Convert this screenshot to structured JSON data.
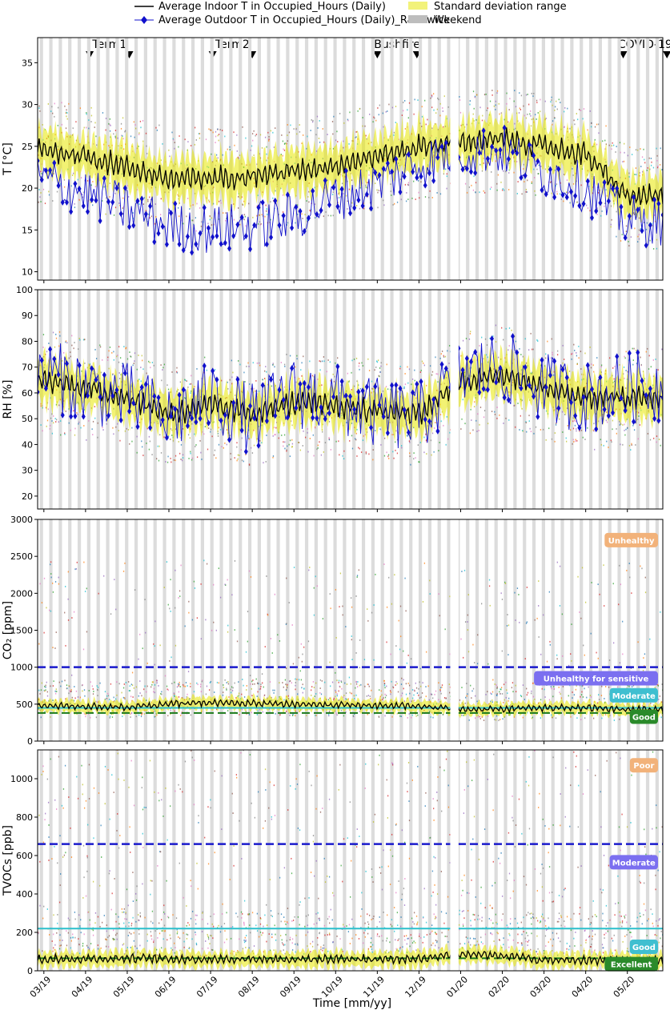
{
  "legend": {
    "indoor": "Average Indoor T in Occupied_Hours (Daily)",
    "outdoor": "Average Outdoor T in Occupied_Hours (Daily)_Randwick",
    "std": "Standard deviation range",
    "weekend": "Weekend"
  },
  "events": [
    {
      "label": "Term1",
      "start": 1.1,
      "end": 2.05
    },
    {
      "label": "Term2",
      "start": 4.05,
      "end": 5.0
    },
    {
      "label": "Bushfire",
      "start": 8.0,
      "end": 8.95
    },
    {
      "label": "COVID-19",
      "start": 13.9,
      "end": 14.95
    }
  ],
  "colors": {
    "indoor": "#000000",
    "outdoor": "#1010cc",
    "std": "#e8e800",
    "weekend": "#d9d9d9"
  },
  "chart_data": [
    {
      "type": "line",
      "ylabel": "T [°C]",
      "ylim": [
        9,
        38
      ],
      "yticks": [
        "10",
        "15",
        "20",
        "25",
        "30",
        "35"
      ],
      "ytick_values": [
        10,
        15,
        20,
        25,
        30,
        35
      ],
      "x_months": [
        "03/19",
        "04/19",
        "05/19",
        "06/19",
        "07/19",
        "08/19",
        "09/19",
        "10/19",
        "11/19",
        "12/19",
        "01/20",
        "02/20",
        "03/20",
        "04/20",
        "05/20"
      ],
      "indoor_monthly": [
        24.5,
        23.8,
        22.5,
        21.0,
        21.2,
        21.5,
        22.0,
        22.8,
        23.8,
        25.0,
        25.5,
        25.8,
        25.0,
        24.0,
        19.0
      ],
      "outdoor_monthly": [
        21.0,
        19.5,
        17.5,
        15.5,
        15.0,
        15.5,
        16.5,
        19.0,
        20.5,
        23.0,
        24.5,
        24.5,
        22.0,
        20.0,
        16.0
      ],
      "std_width": 2.5
    },
    {
      "type": "line",
      "ylabel": "RH [%]",
      "ylim": [
        15,
        100
      ],
      "yticks": [
        "20",
        "30",
        "40",
        "50",
        "60",
        "70",
        "80",
        "90",
        "100"
      ],
      "ytick_values": [
        20,
        30,
        40,
        50,
        60,
        70,
        80,
        90,
        100
      ],
      "indoor_monthly": [
        65,
        62,
        58,
        52,
        55,
        52,
        56,
        55,
        53,
        52,
        64,
        67,
        62,
        58,
        58
      ],
      "outdoor_monthly": [
        68,
        62,
        58,
        50,
        58,
        50,
        60,
        57,
        52,
        50,
        67,
        70,
        62,
        58,
        62
      ],
      "std_width": 8
    },
    {
      "type": "line",
      "ylabel": "CO₂ [ppm]",
      "ylim": [
        0,
        3000
      ],
      "yticks": [
        "0",
        "500",
        "1000",
        "1500",
        "2000",
        "2500",
        "3000"
      ],
      "ytick_values": [
        0,
        500,
        1000,
        1500,
        2000,
        2500,
        3000
      ],
      "indoor_monthly": [
        480,
        470,
        460,
        500,
        520,
        510,
        500,
        490,
        480,
        470,
        430,
        440,
        450,
        450,
        430
      ],
      "std_width": 80,
      "thresholds": [
        {
          "value": 1000,
          "color": "#1a1acc"
        },
        {
          "value": 450,
          "color": "#2cc0cc"
        },
        {
          "value": 380,
          "color": "#1a7a1a"
        }
      ],
      "categories_badges": [
        {
          "label": "Unhealthy",
          "y": 2720,
          "color": "#f2b27a"
        },
        {
          "label": "Unhealthy for sensitive",
          "y": 850,
          "color": "#7b6ff0"
        },
        {
          "label": "Moderate",
          "y": 620,
          "color": "#3fbfd0"
        },
        {
          "label": "Good",
          "y": 330,
          "color": "#2a8a2a"
        }
      ]
    },
    {
      "type": "line",
      "ylabel": "TVOCs [ppb]",
      "xlabel": "Time [mm/yy]",
      "ylim": [
        0,
        1150
      ],
      "yticks": [
        "0",
        "200",
        "400",
        "600",
        "800",
        "1000"
      ],
      "ytick_values": [
        0,
        200,
        400,
        600,
        800,
        1000
      ],
      "indoor_monthly": [
        60,
        62,
        65,
        62,
        60,
        62,
        60,
        62,
        60,
        62,
        90,
        80,
        55,
        55,
        55
      ],
      "std_width": 40,
      "thresholds": [
        {
          "value": 660,
          "color": "#1a1acc"
        },
        {
          "value": 220,
          "color": "#2cc0cc"
        },
        {
          "value": 65,
          "color": "#1a7a1a"
        }
      ],
      "categories_badges": [
        {
          "label": "Poor",
          "y": 1070,
          "color": "#f2b27a"
        },
        {
          "label": "Moderate",
          "y": 565,
          "color": "#7b6ff0"
        },
        {
          "label": "Good",
          "y": 125,
          "color": "#3fbfd0"
        },
        {
          "label": "Excellent",
          "y": 35,
          "color": "#2a8a2a"
        }
      ]
    }
  ]
}
